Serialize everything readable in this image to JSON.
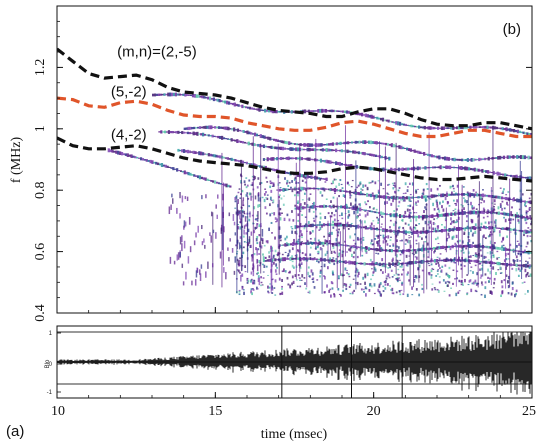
{
  "chart_data": [
    {
      "type": "heatmap",
      "panel_label": "(b)",
      "xlabel": "",
      "ylabel": "f (MHz)",
      "xlim": [
        10,
        25
      ],
      "ylim": [
        0.4,
        1.4
      ],
      "x_ticks": [
        10,
        15,
        20,
        25
      ],
      "y_ticks": [
        {
          "value": 0.4,
          "label": "0.4"
        },
        {
          "value": 0.6,
          "label": "0.6"
        },
        {
          "value": 0.8,
          "label": "0.8"
        },
        {
          "value": 1.0,
          "label": "1"
        },
        {
          "value": 1.2,
          "label": "1.2"
        }
      ],
      "grid": false,
      "annotations": [
        {
          "text": "(m,n)=(2,-5)",
          "x": 11.9,
          "y": 1.235
        },
        {
          "text": "(5,-2)",
          "x": 11.7,
          "y": 1.105
        },
        {
          "text": "(4,-2)",
          "x": 11.7,
          "y": 0.965
        }
      ],
      "series": [
        {
          "name": "",
          "style": "dashed",
          "color": "#111111",
          "x": [
            10.0,
            10.5,
            11.0,
            11.5,
            12.0,
            12.5,
            13.0,
            13.5,
            14.0,
            14.5,
            15.0,
            15.5,
            16.0,
            16.5,
            17.0,
            17.5,
            18.0,
            18.5,
            19.0,
            19.5,
            20.0,
            20.5,
            21.0,
            21.5,
            22.0,
            22.5,
            23.0,
            23.5,
            24.0,
            24.5,
            25.0
          ],
          "y": [
            1.26,
            1.22,
            1.18,
            1.165,
            1.17,
            1.175,
            1.16,
            1.135,
            1.12,
            1.115,
            1.11,
            1.1,
            1.085,
            1.07,
            1.06,
            1.055,
            1.05,
            1.04,
            1.04,
            1.055,
            1.065,
            1.065,
            1.05,
            1.03,
            1.015,
            1.01,
            1.01,
            1.02,
            1.02,
            1.01,
            1.0
          ]
        },
        {
          "name": "",
          "style": "dashed",
          "color": "#e0552a",
          "x": [
            10.0,
            10.5,
            11.0,
            11.5,
            12.0,
            12.5,
            13.0,
            13.5,
            14.0,
            14.5,
            15.0,
            15.5,
            16.0,
            16.5,
            17.0,
            17.5,
            18.0,
            18.5,
            19.0,
            19.5,
            20.0,
            20.5,
            21.0,
            21.5,
            22.0,
            22.5,
            23.0,
            23.5,
            24.0,
            24.5,
            25.0
          ],
          "y": [
            1.1,
            1.095,
            1.075,
            1.07,
            1.085,
            1.09,
            1.08,
            1.06,
            1.045,
            1.04,
            1.04,
            1.035,
            1.02,
            1.01,
            1.0,
            0.995,
            0.995,
            1.005,
            1.02,
            1.025,
            1.015,
            1.0,
            0.985,
            0.975,
            0.975,
            0.985,
            0.995,
            0.995,
            0.985,
            0.975,
            0.975
          ]
        },
        {
          "name": "",
          "style": "dashed",
          "color": "#111111",
          "x": [
            10.0,
            10.5,
            11.0,
            11.5,
            12.0,
            12.5,
            13.0,
            13.5,
            14.0,
            14.5,
            15.0,
            15.5,
            16.0,
            16.5,
            17.0,
            17.5,
            18.0,
            18.5,
            19.0,
            19.5,
            20.0,
            20.5,
            21.0,
            21.5,
            22.0,
            22.5,
            23.0,
            23.5,
            24.0,
            24.5,
            25.0
          ],
          "y": [
            0.97,
            0.945,
            0.935,
            0.935,
            0.94,
            0.945,
            0.935,
            0.92,
            0.905,
            0.895,
            0.89,
            0.885,
            0.88,
            0.87,
            0.86,
            0.855,
            0.855,
            0.86,
            0.87,
            0.875,
            0.87,
            0.86,
            0.85,
            0.84,
            0.835,
            0.835,
            0.84,
            0.845,
            0.84,
            0.835,
            0.83
          ]
        }
      ]
    },
    {
      "type": "line",
      "panel_label": "(a)",
      "xlabel": "time (msec)",
      "ylabel": "",
      "xlim": [
        10,
        25
      ],
      "x_ticks": [
        10,
        15,
        20,
        25
      ],
      "side_tick_labels": [
        "1",
        "0",
        "-1"
      ],
      "mid_label": "Blo",
      "grid": false
    }
  ]
}
